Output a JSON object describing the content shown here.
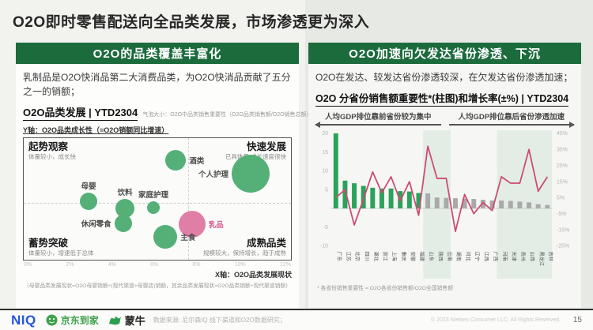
{
  "slide": {
    "title": "O2O即时零售配送向全品类发展，市场渗透更为深入",
    "page_number": "15",
    "copyright": "© 2023 Nielsen Consumer LLC. All Rights Reserved."
  },
  "footer": {
    "niq_logo": "NIQ",
    "jd_label": "京东到家",
    "mengniu_label": "蒙牛",
    "source": "数据来源: 尼尔森IQ 线下渠道和O2O数据研究；"
  },
  "left_panel": {
    "header": "O2O的品类覆盖丰富化",
    "paragraph": "乳制品是O2O快消品第二大消费品类，为O2O快消品贡献了五分之一的销额；",
    "chart_title": "O2O品类发展 | YTD2304",
    "bubble_note": "气泡大小：O2O中品类销售重要性（O2O品类销售额/O2O销售总额）",
    "y_axis_note": "Y轴：O2O品类成长性（=O2O销额同比增速）",
    "x_axis_label": "X轴：O2O品类发展现状",
    "footnote": "（母婴品类发展现状=O2O母婴销额÷(现代渠道+母婴店)销额，其余品类发展现状=O2O品类销额÷现代渠道销额）",
    "quadrants": {
      "tl": {
        "title": "起势观察",
        "sub": "体量较小，成长快"
      },
      "tr": {
        "title": "快速发展",
        "sub": "已具体量,成长速度很快"
      },
      "bl": {
        "title": "蓄势突破",
        "sub": "体量较小，增速低于总体"
      },
      "br": {
        "title": "成熟品类",
        "sub": "规模较大，保持增长，趋于成熟"
      }
    }
  },
  "right_panel": {
    "header": "O2O加速向欠发达省份渗透、下沉",
    "paragraph": "O2O在发达、较发达省份渗透较深，在欠发达省份渗透加速；",
    "chart_title": "O2O 分省份销售额重要性*(柱图)和增长率(±%) | YTD2304",
    "arrow_left": "人均GDP排位靠前省份较为集中",
    "arrow_right": "人均GDP排位靠后省份渗透加速",
    "footnote": "* 各省份销售重要性 = O2O各省份销售额/O2O全国销售额"
  },
  "colors": {
    "header_green": "#1c6b3d",
    "bubble_green": "#54b077",
    "bubble_pink": "#e07ea6",
    "bar_green": "#2aa25b",
    "bar_gray": "#a9a9a9",
    "line_pink": "#cc4b74",
    "band_green": "#e3ede6",
    "niq_blue": "#2456e0",
    "jd_green": "#3ea14b"
  },
  "chart_data": [
    {
      "type": "scatter",
      "title": "O2O品类发展 | YTD2304",
      "xlabel": "O2O品类发展现状",
      "ylabel": "O2O品类成长性（=O2O销额同比增速）",
      "x_ticks": [
        "0%",
        "2%",
        "4%",
        "6%",
        "8%",
        "10%",
        "12%"
      ],
      "x_axis_range": [
        0,
        12
      ],
      "bubble_size_meaning": "O2O中品类销售重要性（O2O品类销售额/O2O销售总额）",
      "bubbles": [
        {
          "label": "酒类",
          "x": 7.5,
          "y": 82,
          "r": 13,
          "color": "green",
          "label_side": "right"
        },
        {
          "label": "个人护理",
          "x": 11.2,
          "y": 71,
          "r": 24,
          "color": "green",
          "label_side": "left"
        },
        {
          "label": "母婴",
          "x": 3.2,
          "y": 48,
          "r": 11,
          "color": "green",
          "label_side": "top"
        },
        {
          "label": "饮料",
          "x": 5.0,
          "y": 42,
          "r": 12,
          "color": "green",
          "label_side": "top"
        },
        {
          "label": "家庭护理",
          "x": 6.4,
          "y": 43,
          "r": 8,
          "color": "green",
          "label_side": "top"
        },
        {
          "label": "休闲零食",
          "x": 4.9,
          "y": 30,
          "r": 11,
          "color": "green",
          "label_side": "left"
        },
        {
          "label": "乳品",
          "x": 8.3,
          "y": 29,
          "r": 17,
          "color": "pink",
          "label_side": "right"
        },
        {
          "label": "主食",
          "x": 7.0,
          "y": 19,
          "r": 15,
          "color": "green",
          "label_side": "right"
        }
      ]
    },
    {
      "type": "bar",
      "title": "O2O 分省份销售额重要性*(柱图)和增长率(±%) | YTD2304",
      "categories": [
        "广东",
        "江苏",
        "北京",
        "四川",
        "湖北",
        "浙江",
        "上海",
        "重庆",
        "安徽",
        "福建",
        "山东",
        "陕西",
        "云南",
        "湖南",
        "河北",
        "辽宁",
        "江西",
        "广西",
        "河南",
        "天津",
        "贵州",
        "山西",
        "黑龙江",
        "吉林"
      ],
      "series": [
        {
          "name": "销售额重要性",
          "type": "bar",
          "green_count": 10,
          "values": [
            20,
            7.4,
            6.7,
            6.0,
            5.5,
            5.3,
            5.3,
            4.6,
            4.5,
            4.1,
            4.0,
            2.9,
            2.8,
            2.7,
            2.6,
            2.5,
            2.3,
            2.1,
            2.1,
            2.0,
            1.8,
            1.6,
            1.1,
            0.9
          ]
        },
        {
          "name": "增长率",
          "type": "line",
          "values": [
            5,
            10,
            -12,
            4,
            21,
            8,
            18,
            3,
            15,
            -6,
            37,
            17,
            17,
            -16,
            7,
            -5,
            2,
            -3,
            18,
            14,
            14,
            35,
            9,
            18
          ]
        }
      ],
      "ylim_left": [
        -10,
        20
      ],
      "ylim_right": [
        -25,
        45
      ],
      "left_ticks": [
        20,
        15,
        10,
        5,
        -5,
        -10
      ],
      "right_ticks": [
        "45%",
        "35%",
        "25%",
        "15%",
        "5%",
        "-5%",
        "-15%",
        "-25%"
      ],
      "highlight_bands": [
        [
          10,
          12
        ],
        [
          18,
          23
        ]
      ]
    }
  ]
}
